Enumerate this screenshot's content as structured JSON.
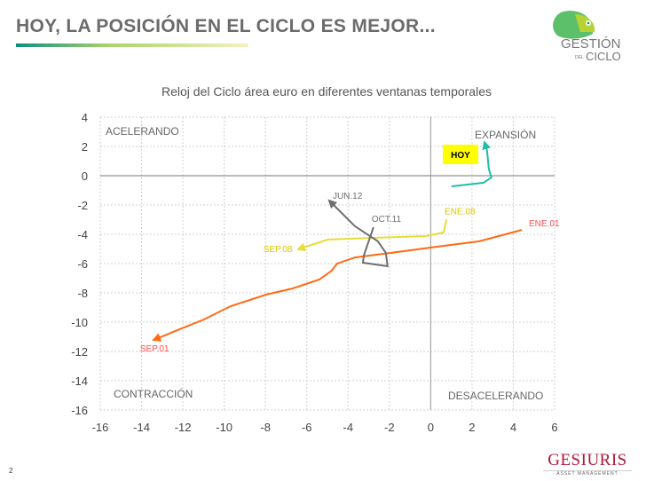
{
  "header": {
    "title": "HOY, LA POSICIÓN EN EL CICLO ES MEJOR...",
    "logo_line1": "GESTIÓN",
    "logo_del": "DEL",
    "logo_line2": "CICLO"
  },
  "footer": {
    "page": "2",
    "brand": "GESIURIS",
    "brand_sub": "· ASSET MANAGEMENT ·"
  },
  "chart_data": {
    "type": "line",
    "title": "Reloj del Ciclo área euro en diferentes ventanas temporales",
    "xlim": [
      -16,
      6
    ],
    "ylim": [
      -16,
      4
    ],
    "xticks": [
      -16,
      -14,
      -12,
      -10,
      -8,
      -6,
      -4,
      -2,
      0,
      2,
      4,
      6
    ],
    "yticks": [
      4,
      2,
      0,
      -2,
      -4,
      -6,
      -8,
      -10,
      -12,
      -14,
      -16
    ],
    "grid": true,
    "quadrants": [
      "ACELERANDO",
      "EXPANSIÓN",
      "CONTRACCIÓN",
      "DESACELERANDO"
    ],
    "series": [
      {
        "name": "ENE.01 → SEP.01",
        "start_label": "ENE.01",
        "end_label": "SEP.01",
        "color": "#ff6a13",
        "label_color": "#ff4d4d",
        "points": [
          [
            4.41,
            -3.7
          ],
          [
            2.35,
            -4.48
          ],
          [
            0.63,
            -4.79
          ],
          [
            -1.95,
            -5.27
          ],
          [
            -3.67,
            -5.58
          ],
          [
            -4.53,
            -6.0
          ],
          [
            -4.79,
            -6.48
          ],
          [
            -5.39,
            -7.09
          ],
          [
            -6.68,
            -7.7
          ],
          [
            -7.97,
            -8.12
          ],
          [
            -9.69,
            -8.91
          ],
          [
            -10.98,
            -9.82
          ],
          [
            -12.27,
            -10.55
          ],
          [
            -13.3,
            -11.15
          ]
        ]
      },
      {
        "name": "ENE.08 → SEP.08",
        "start_label": "ENE.08",
        "end_label": "SEP.08",
        "color": "#e6dc3c",
        "label_color": "#d9c800",
        "points": [
          [
            0.76,
            -3.0
          ],
          [
            0.63,
            -3.88
          ],
          [
            -0.23,
            -4.12
          ],
          [
            -2.8,
            -4.24
          ],
          [
            -4.97,
            -4.36
          ],
          [
            -6.3,
            -4.97
          ]
        ]
      },
      {
        "name": "OCT.11 → JUN.12",
        "start_label": "OCT.11",
        "end_label": "JUN.12",
        "color": "#6e6e6e",
        "label_color": "#6e6e6e",
        "points": [
          [
            -2.77,
            -3.52
          ],
          [
            -3.24,
            -5.45
          ],
          [
            -3.28,
            -5.94
          ],
          [
            -2.09,
            -6.18
          ],
          [
            -2.17,
            -5.27
          ],
          [
            -2.56,
            -4.48
          ],
          [
            -3.67,
            -3.45
          ],
          [
            -4.83,
            -1.82
          ]
        ]
      },
      {
        "name": "HOY",
        "start_label": "",
        "end_label": "HOY",
        "color": "#1fbfa6",
        "label_color": "#000000",
        "points": [
          [
            1.0,
            -0.73
          ],
          [
            2.56,
            -0.48
          ],
          [
            2.94,
            -0.12
          ],
          [
            2.81,
            0.48
          ],
          [
            2.73,
            1.7
          ],
          [
            2.64,
            2.12
          ]
        ]
      }
    ]
  }
}
